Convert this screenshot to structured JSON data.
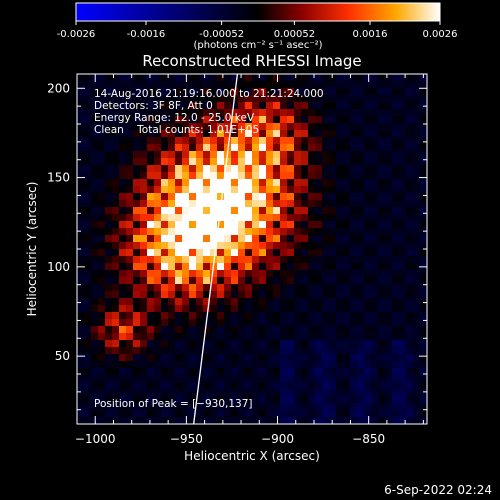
{
  "colorbar": {
    "ticks": [
      "-0.0026",
      "-0.0016",
      "-0.00052",
      "0.00052",
      "0.0016",
      "0.0026"
    ],
    "tick_values": [
      -0.0026,
      -0.0016,
      -0.00052,
      0.00052,
      0.0016,
      0.0026
    ],
    "units_label": "(photons cm⁻² s⁻¹ asec⁻²)",
    "colormap": [
      "#0000ff",
      "#000000",
      "#7f0000",
      "#ff4000",
      "#ffb000",
      "#ffffff"
    ]
  },
  "chart_data": {
    "type": "heatmap",
    "title": "Reconstructed RHESSI Image",
    "xlabel": "Heliocentric X (arcsec)",
    "ylabel": "Heliocentric Y (arcsec)",
    "xlim": [
      -1010,
      -818
    ],
    "ylim": [
      12,
      208
    ],
    "x_ticks": [
      -1000,
      -950,
      -900,
      -850
    ],
    "x_tick_labels": [
      "−1000",
      "−950",
      "−900",
      "−850"
    ],
    "y_ticks": [
      50,
      100,
      150,
      200
    ],
    "y_tick_labels": [
      "50",
      "100",
      "150",
      "200"
    ],
    "value_range": [
      -0.0026,
      0.0026
    ],
    "peak": [
      -930,
      137
    ],
    "limb_line": [
      [
        -946,
        12
      ],
      [
        -922,
        208
      ]
    ],
    "annotations": [
      "14-Aug-2016 21:19:16.000 to 21:21:24.000",
      "Detectors: 3F 8F, Att 0",
      "Energy Range: 12.0 - 25.0 keV",
      "Clean    Total counts: 1.01E+05"
    ],
    "peak_label": "Position of Peak = [−930,137]"
  },
  "footer": {
    "timestamp": "6-Sep-2022 02:24"
  }
}
